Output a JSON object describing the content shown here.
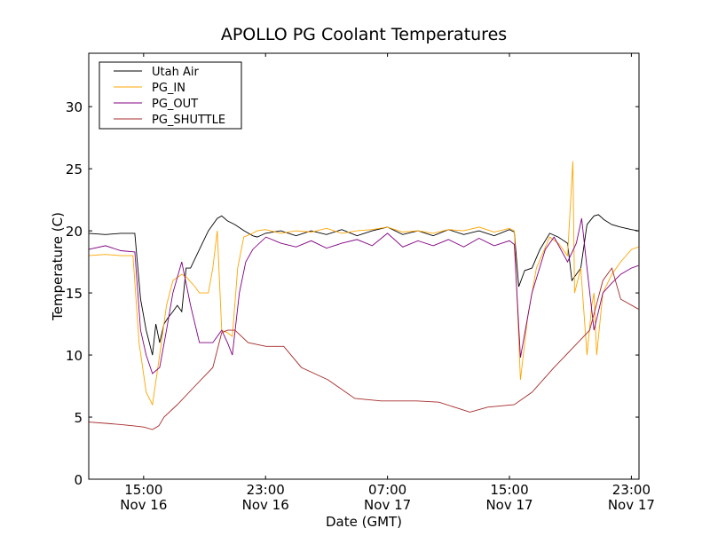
{
  "chart_data": {
    "type": "line",
    "title": "APOLLO PG Coolant Temperatures",
    "xlabel": "Date (GMT)",
    "ylabel": "Temperature (C)",
    "x_units": "hours since Nov 16 00:00 GMT",
    "xlim": [
      11.4,
      47.5
    ],
    "ylim": [
      0,
      34.3
    ],
    "grid": false,
    "legend_placement": "top-left",
    "x_ticks": [
      {
        "value": 15,
        "time": "15:00",
        "date": "Nov 16"
      },
      {
        "value": 23,
        "time": "23:00",
        "date": "Nov 16"
      },
      {
        "value": 31,
        "time": "07:00",
        "date": "Nov 17"
      },
      {
        "value": 39,
        "time": "15:00",
        "date": "Nov 17"
      },
      {
        "value": 47,
        "time": "23:00",
        "date": "Nov 17"
      }
    ],
    "y_ticks": [
      0,
      5,
      10,
      15,
      20,
      25,
      30
    ],
    "series": [
      {
        "name": "Utah Air",
        "color": "#000000",
        "x": [
          11.39,
          12.5,
          13.5,
          14.42,
          14.8,
          15.17,
          15.58,
          15.8,
          16.05,
          16.34,
          16.6,
          16.92,
          17.21,
          17.5,
          17.79,
          18.08,
          18.66,
          19.25,
          19.83,
          20.12,
          20.5,
          20.99,
          21.6,
          22.16,
          22.45,
          23.0,
          24.0,
          25.0,
          26.0,
          27.0,
          28.0,
          29.0,
          30.0,
          31.0,
          32.0,
          33.0,
          34.0,
          35.0,
          36.0,
          37.0,
          38.0,
          39.0,
          39.32,
          39.61,
          40.0,
          40.48,
          41.0,
          41.64,
          42.2,
          42.81,
          43.1,
          43.39,
          43.68,
          44.09,
          44.55,
          44.84,
          45.2,
          45.72,
          46.3,
          47.0,
          47.46
        ],
        "y": [
          19.8,
          19.7,
          19.8,
          19.8,
          14.5,
          12.0,
          10.0,
          12.5,
          11.0,
          12.5,
          13.0,
          13.5,
          14.0,
          13.5,
          17.0,
          17.0,
          18.5,
          20.0,
          21.0,
          21.2,
          20.8,
          20.5,
          20.0,
          19.6,
          19.5,
          19.8,
          20.0,
          19.6,
          20.0,
          19.7,
          20.1,
          19.6,
          20.0,
          20.3,
          19.7,
          20.0,
          19.6,
          20.1,
          19.7,
          20.0,
          19.6,
          20.1,
          19.9,
          15.5,
          16.8,
          17.0,
          18.5,
          19.8,
          19.5,
          19.0,
          16.0,
          16.5,
          17.0,
          20.5,
          21.2,
          21.3,
          20.9,
          20.5,
          20.3,
          20.1,
          20.0
        ]
      },
      {
        "name": "PG_IN",
        "color": "#ffa500",
        "x": [
          11.39,
          12.5,
          13.5,
          14.3,
          14.7,
          15.17,
          15.58,
          16.05,
          16.5,
          16.92,
          17.5,
          17.79,
          18.37,
          18.66,
          19.25,
          19.54,
          19.83,
          20.12,
          20.5,
          20.82,
          21.17,
          21.57,
          22.16,
          22.45,
          23.0,
          24.0,
          25.0,
          26.0,
          27.0,
          28.0,
          29.0,
          30.0,
          31.0,
          32.0,
          33.0,
          34.0,
          35.0,
          36.0,
          37.0,
          38.0,
          39.0,
          39.32,
          39.72,
          40.19,
          40.77,
          41.64,
          42.2,
          42.81,
          43.16,
          43.27,
          43.68,
          44.09,
          44.4,
          44.55,
          44.72,
          45.13,
          45.72,
          46.3,
          47.0,
          47.46
        ],
        "y": [
          18.0,
          18.1,
          18.0,
          18.0,
          11.0,
          7.0,
          6.0,
          10.0,
          14.0,
          16.0,
          16.5,
          16.3,
          15.5,
          15.0,
          15.0,
          17.0,
          20.0,
          12.0,
          11.8,
          11.5,
          17.0,
          19.5,
          19.8,
          20.0,
          20.1,
          19.8,
          20.0,
          19.9,
          20.2,
          19.8,
          20.0,
          20.1,
          20.3,
          19.9,
          20.0,
          19.8,
          20.1,
          20.0,
          20.3,
          19.9,
          20.2,
          20.0,
          8.0,
          13.0,
          17.0,
          19.5,
          19.0,
          18.0,
          25.6,
          15.0,
          17.0,
          10.0,
          14.0,
          15.0,
          10.0,
          15.0,
          16.5,
          17.5,
          18.5,
          18.7
        ]
      },
      {
        "name": "PG_OUT",
        "color": "#800080",
        "x": [
          11.39,
          12.5,
          13.5,
          14.42,
          14.8,
          15.17,
          15.58,
          16.05,
          16.5,
          16.92,
          17.5,
          18.08,
          18.66,
          19.25,
          19.54,
          20.12,
          20.5,
          20.82,
          21.28,
          21.7,
          22.16,
          23.03,
          24.0,
          25.0,
          26.0,
          27.0,
          28.0,
          29.0,
          30.0,
          31.0,
          32.0,
          33.0,
          34.0,
          35.0,
          36.0,
          37.0,
          38.0,
          39.0,
          39.32,
          39.72,
          40.48,
          41.35,
          41.93,
          42.81,
          43.39,
          43.74,
          44.09,
          44.55,
          45.13,
          45.72,
          46.3,
          47.0,
          47.46
        ],
        "y": [
          18.5,
          18.8,
          18.4,
          18.3,
          12.0,
          10.0,
          8.5,
          9.0,
          12.0,
          15.0,
          17.5,
          14.0,
          11.0,
          11.0,
          11.0,
          12.0,
          11.0,
          10.0,
          15.0,
          17.5,
          18.5,
          19.5,
          19.0,
          18.7,
          19.2,
          18.6,
          19.0,
          19.3,
          18.8,
          19.8,
          18.7,
          19.2,
          18.8,
          19.3,
          18.7,
          19.4,
          18.8,
          19.2,
          18.9,
          9.8,
          15.0,
          18.5,
          19.5,
          17.5,
          19.0,
          21.0,
          17.0,
          12.0,
          15.0,
          15.8,
          16.5,
          17.0,
          17.2
        ]
      },
      {
        "name": "PG_SHUTTLE",
        "color": "#a52a2a",
        "x": [
          11.39,
          12.5,
          13.5,
          14.3,
          15.0,
          15.58,
          16.0,
          16.34,
          17.21,
          18.37,
          19.54,
          20.12,
          20.5,
          20.99,
          21.86,
          23.03,
          24.19,
          25.35,
          27.1,
          28.85,
          30.59,
          32.92,
          34.37,
          36.41,
          37.57,
          39.32,
          40.48,
          41.93,
          43.1,
          44.26,
          45.13,
          45.72,
          46.3,
          47.46
        ],
        "y": [
          4.6,
          4.5,
          4.4,
          4.3,
          4.2,
          4.0,
          4.3,
          5.0,
          6.0,
          7.5,
          9.0,
          11.8,
          12.0,
          12.0,
          11.0,
          10.7,
          10.7,
          9.0,
          8.0,
          6.5,
          6.3,
          6.3,
          6.2,
          5.4,
          5.8,
          6.0,
          7.0,
          9.0,
          10.5,
          12.0,
          16.0,
          17.0,
          14.5,
          13.7
        ]
      }
    ]
  }
}
